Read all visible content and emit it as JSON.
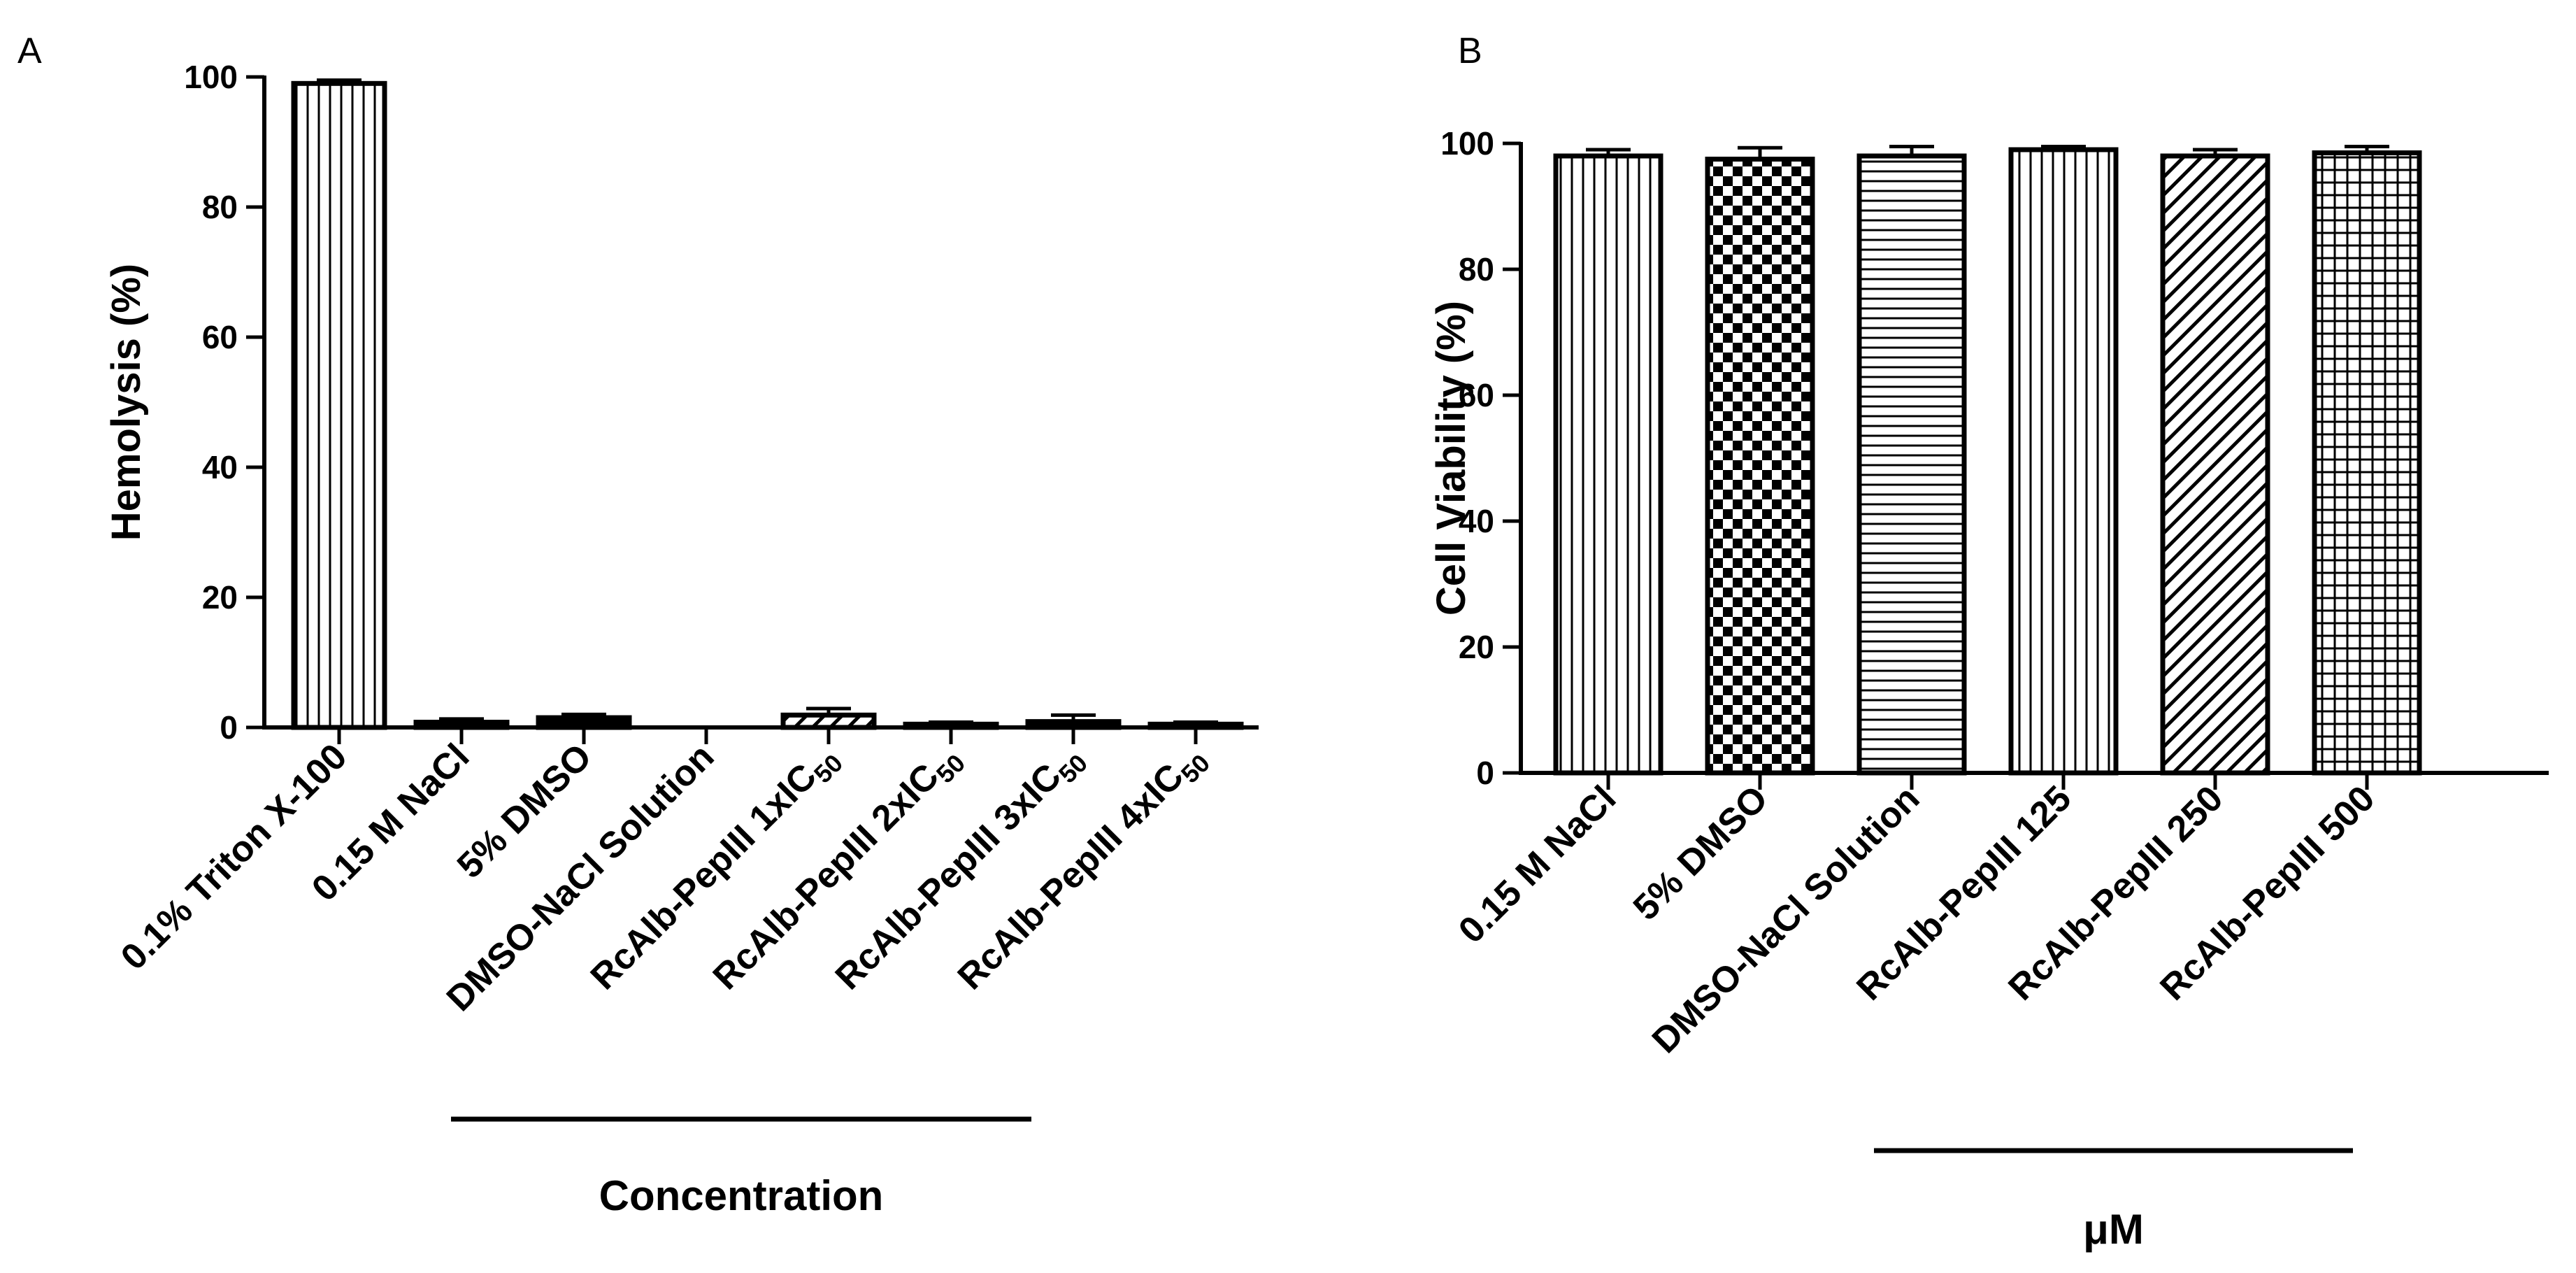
{
  "chart_data": [
    {
      "panel": "A",
      "type": "bar",
      "title": "",
      "ylabel": "Hemolysis (%)",
      "xlabel": "Concentration",
      "ylim": [
        0,
        100
      ],
      "yticks": [
        0,
        20,
        40,
        60,
        80,
        100
      ],
      "categories": [
        {
          "text": "0.1% Triton X-100"
        },
        {
          "text": "0.15 M NaCl"
        },
        {
          "text": "5% DMSO"
        },
        {
          "text": "DMSO-NaCl Solution"
        },
        {
          "text": "RcAlb-PepIII 1xIC",
          "sub": "50"
        },
        {
          "text": "RcAlb-PepIII 2xIC",
          "sub": "50"
        },
        {
          "text": "RcAlb-PepIII 3xIC",
          "sub": "50"
        },
        {
          "text": "RcAlb-PepIII 4xIC",
          "sub": "50"
        }
      ],
      "values": [
        99.0,
        0.8,
        1.5,
        0.0,
        1.9,
        0.5,
        0.9,
        0.5
      ],
      "errors": [
        0.5,
        0.5,
        0.5,
        0.0,
        1.0,
        0.3,
        1.0,
        0.3
      ],
      "patterns": [
        "vlines",
        "solid",
        "solid",
        "none",
        "diag",
        "solid",
        "solid",
        "solid"
      ],
      "group_bracket": "categories 5-8"
    },
    {
      "panel": "B",
      "type": "bar",
      "title": "",
      "ylabel": "Cell Viability (%)",
      "xlabel": "μM",
      "ylim": [
        0,
        100
      ],
      "yticks": [
        0,
        20,
        40,
        60,
        80,
        100
      ],
      "categories": [
        {
          "text": "0.15 M NaCl"
        },
        {
          "text": "5% DMSO"
        },
        {
          "text": "DMSO-NaCl Solution"
        },
        {
          "text": "RcAlb-PepIII 125"
        },
        {
          "text": "RcAlb-PepIII 250"
        },
        {
          "text": "RcAlb-PepIII 500"
        }
      ],
      "values": [
        98.0,
        97.5,
        98.0,
        99.0,
        98.0,
        98.5
      ],
      "errors": [
        1.0,
        1.8,
        1.5,
        0.5,
        1.0,
        1.0
      ],
      "patterns": [
        "vlines",
        "checker",
        "hlines",
        "vlines",
        "diag",
        "grid"
      ],
      "group_bracket": "categories 3-6"
    }
  ]
}
